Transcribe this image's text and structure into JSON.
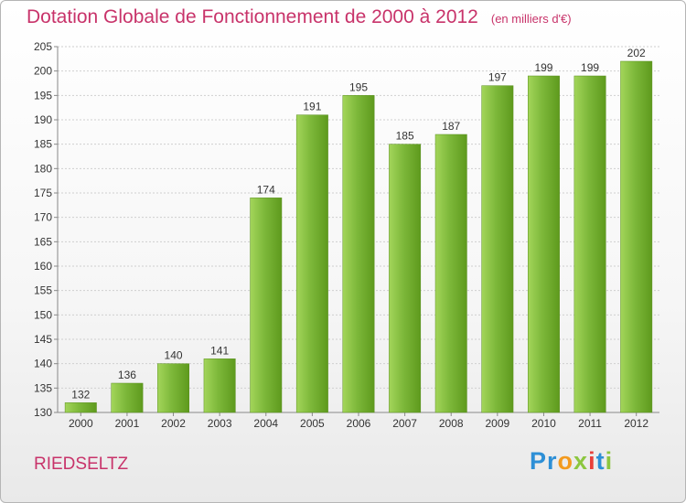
{
  "title": "Dotation Globale de Fonctionnement de 2000 à 2012",
  "unit": "(en milliers d'€)",
  "commune": "RIEDSELTZ",
  "logo": {
    "letters": [
      "P",
      "r",
      "o",
      "x",
      "i",
      "t",
      "i"
    ],
    "colors": [
      "#2d8fd6",
      "#2d8fd6",
      "#f39a1e",
      "#8cc63f",
      "#e8403a",
      "#2d8fd6",
      "#8cc63f"
    ]
  },
  "colors": {
    "title": "#c8336a",
    "bar": "#7db83a",
    "bar_light": "#a3d55a",
    "bar_dark": "#5e9a1d"
  },
  "chart_data": {
    "type": "bar",
    "categories": [
      "2000",
      "2001",
      "2002",
      "2003",
      "2004",
      "2005",
      "2006",
      "2007",
      "2008",
      "2009",
      "2010",
      "2011",
      "2012"
    ],
    "values": [
      132,
      136,
      140,
      141,
      174,
      191,
      195,
      185,
      187,
      197,
      199,
      199,
      202
    ],
    "ylim": [
      130,
      205
    ],
    "yticks": [
      130,
      135,
      140,
      145,
      150,
      155,
      160,
      165,
      170,
      175,
      180,
      185,
      190,
      195,
      200,
      205
    ],
    "grid": true,
    "data_labels": true
  }
}
